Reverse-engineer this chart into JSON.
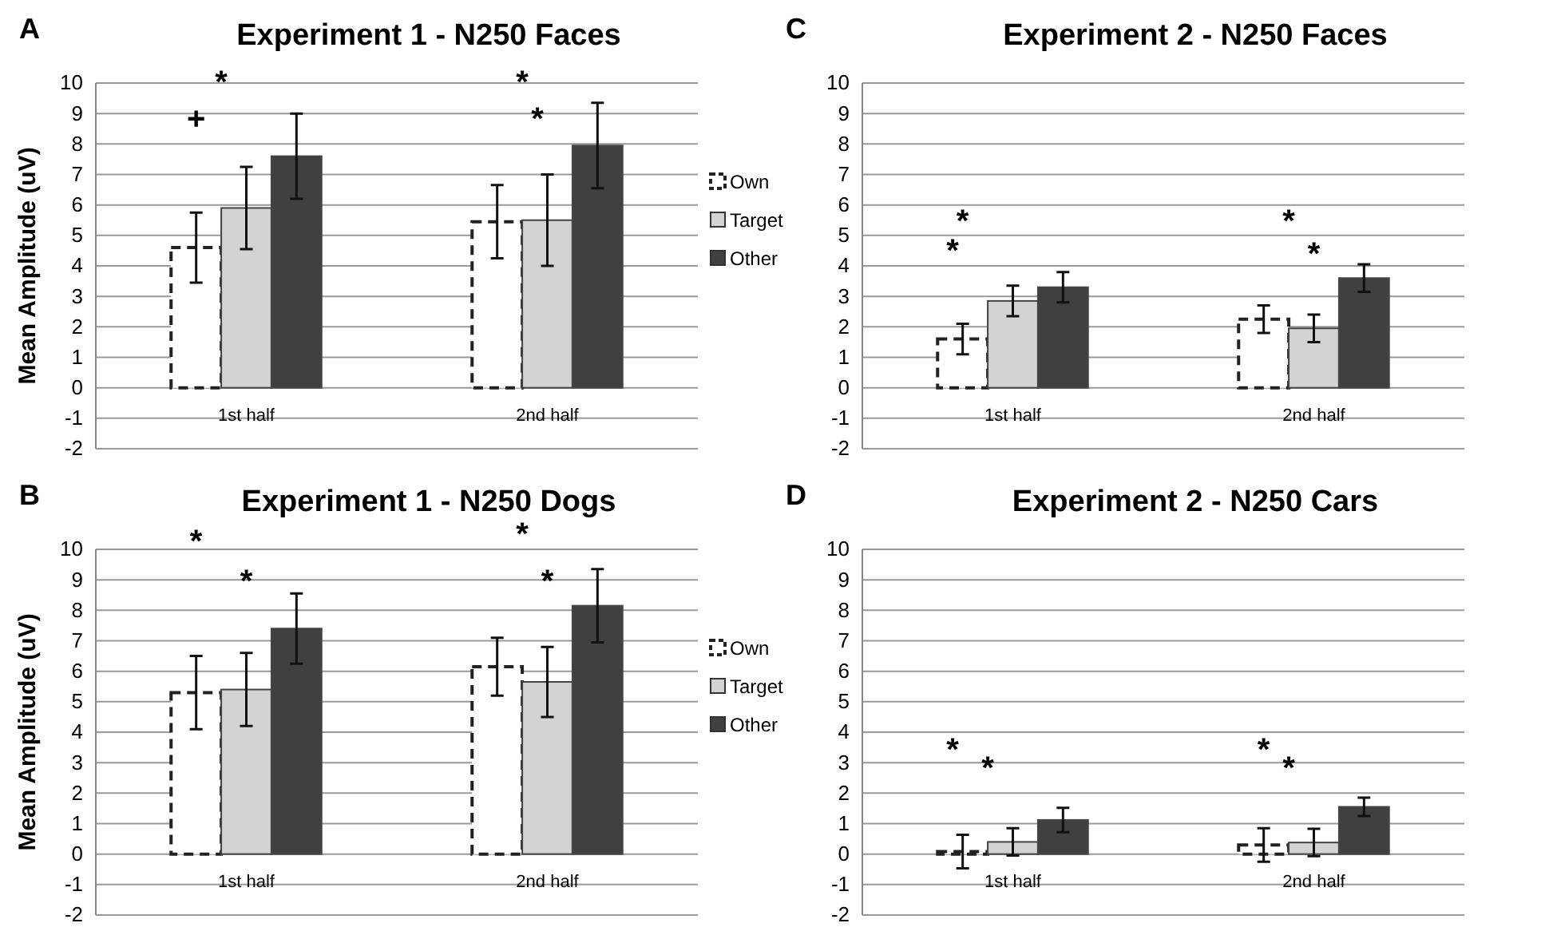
{
  "chart_data": [
    {
      "type": "bar",
      "title": "Experiment 1 - N250 Faces",
      "ylabel": "Mean Amplitude (uV)",
      "categories": [
        "1st half",
        "2nd half"
      ],
      "ylim": [
        -2,
        10
      ],
      "yticks": [
        -2,
        -1,
        0,
        1,
        2,
        3,
        4,
        5,
        6,
        7,
        8,
        9,
        10
      ],
      "grid": "y",
      "legend": "right",
      "series": [
        {
          "name": "Own",
          "color": "#222222",
          "line_style": "dashed",
          "values": [
            4.6,
            5.45
          ],
          "errors": [
            1.15,
            1.2
          ]
        },
        {
          "name": "Target",
          "color": "#d3d3d3",
          "values": [
            5.9,
            5.5
          ],
          "errors": [
            1.35,
            1.5
          ]
        },
        {
          "name": "Other",
          "color": "#404040",
          "values": [
            7.6,
            7.95
          ],
          "errors": [
            1.4,
            1.4
          ]
        }
      ],
      "annotations": [
        "A",
        "*",
        "+",
        "*",
        "*"
      ]
    },
    {
      "type": "bar",
      "title": "Experiment 1 - N250 Dogs",
      "ylabel": "Mean Amplitude (uV)",
      "categories": [
        "1st half",
        "2nd half"
      ],
      "ylim": [
        -2,
        10
      ],
      "yticks": [
        -2,
        -1,
        0,
        1,
        2,
        3,
        4,
        5,
        6,
        7,
        8,
        9,
        10
      ],
      "grid": "y",
      "legend": "right",
      "series": [
        {
          "name": "Own",
          "color": "#222222",
          "line_style": "dashed",
          "values": [
            5.3,
            6.15
          ],
          "errors": [
            1.2,
            0.95
          ]
        },
        {
          "name": "Target",
          "color": "#d3d3d3",
          "values": [
            5.4,
            5.65
          ],
          "errors": [
            1.2,
            1.15
          ]
        },
        {
          "name": "Other",
          "color": "#404040",
          "values": [
            7.4,
            8.15
          ],
          "errors": [
            1.15,
            1.2
          ]
        }
      ],
      "annotations": [
        "B",
        "*",
        "*",
        "*",
        "*"
      ]
    },
    {
      "type": "bar",
      "title": "Experiment 2 - N250 Faces",
      "categories": [
        "1st half",
        "2nd half"
      ],
      "ylim": [
        -2,
        10
      ],
      "yticks": [
        -2,
        -1,
        0,
        1,
        2,
        3,
        4,
        5,
        6,
        7,
        8,
        9,
        10
      ],
      "grid": "y",
      "legend": false,
      "series": [
        {
          "color": "#222222",
          "line_style": "dashed",
          "values": [
            1.6,
            2.25
          ],
          "errors": [
            0.5,
            0.45
          ]
        },
        {
          "color": "#d3d3d3",
          "values": [
            2.85,
            1.95
          ],
          "errors": [
            0.5,
            0.45
          ]
        },
        {
          "color": "#404040",
          "values": [
            3.3,
            3.6
          ],
          "errors": [
            0.5,
            0.45
          ]
        }
      ],
      "annotations": [
        "C",
        "*",
        "*",
        "*",
        "*"
      ]
    },
    {
      "type": "bar",
      "title": "Experiment 2 - N250 Cars",
      "categories": [
        "1st half",
        "2nd half"
      ],
      "ylim": [
        -2,
        10
      ],
      "yticks": [
        -2,
        -1,
        0,
        1,
        2,
        3,
        4,
        5,
        6,
        7,
        8,
        9,
        10
      ],
      "grid": "y",
      "legend": false,
      "series": [
        {
          "color": "#222222",
          "line_style": "dashed",
          "values": [
            0.08,
            0.3
          ],
          "errors": [
            0.55,
            0.55
          ]
        },
        {
          "color": "#d3d3d3",
          "values": [
            0.4,
            0.38
          ],
          "errors": [
            0.45,
            0.45
          ]
        },
        {
          "color": "#404040",
          "values": [
            1.12,
            1.55
          ],
          "errors": [
            0.4,
            0.3
          ]
        }
      ],
      "annotations": [
        "D",
        "*",
        "*",
        "*",
        "*"
      ]
    }
  ]
}
